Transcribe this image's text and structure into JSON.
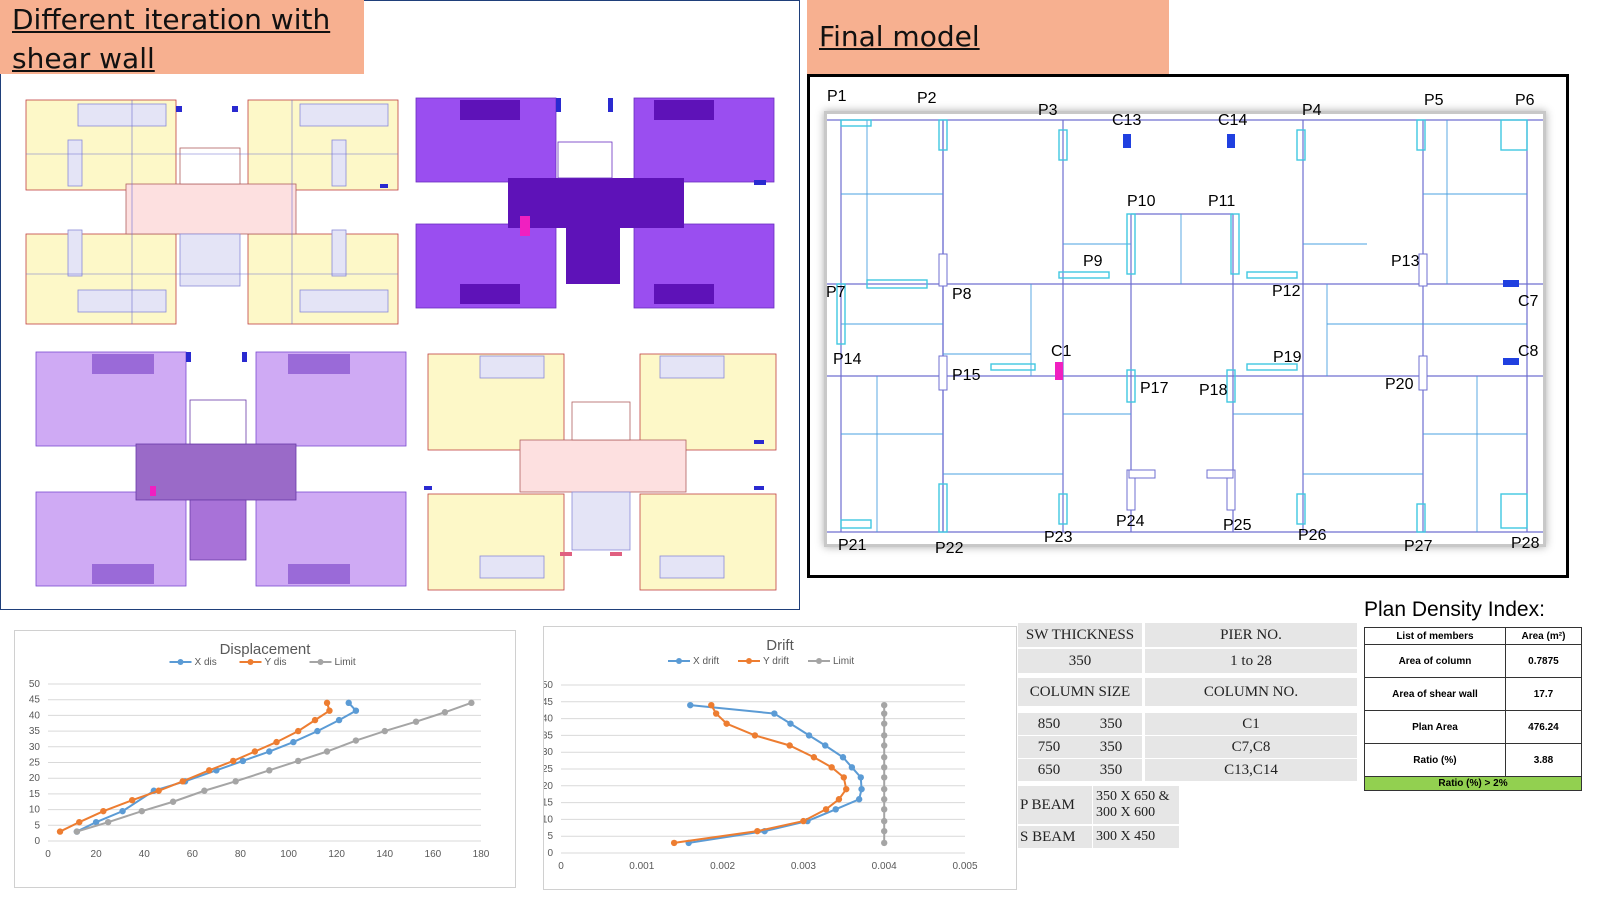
{
  "titles": {
    "left": "Different iteration with shear wall",
    "right": "Final model"
  },
  "final_model": {
    "labels": [
      "P1",
      "P2",
      "P3",
      "C13",
      "C14",
      "P4",
      "P5",
      "P6",
      "P10",
      "P11",
      "P9",
      "P13",
      "P7",
      "P8",
      "P12",
      "C7",
      "C1",
      "C8",
      "P14",
      "P15",
      "P19",
      "P17",
      "P18",
      "P20",
      "P24",
      "P25",
      "P23",
      "P26",
      "P21",
      "P22",
      "P27",
      "P28"
    ]
  },
  "displacement_chart": {
    "title": "Displacement",
    "legend": [
      "X dis",
      "Y dis",
      "Limit"
    ],
    "x_ticks": [
      "0",
      "20",
      "40",
      "60",
      "80",
      "100",
      "120",
      "140",
      "160",
      "180"
    ],
    "y_ticks": [
      "0",
      "5",
      "10",
      "15",
      "20",
      "25",
      "30",
      "35",
      "40",
      "45",
      "50"
    ]
  },
  "drift_chart": {
    "title": "Drift",
    "legend": [
      "X drift",
      "Y drift",
      "Limit"
    ],
    "x_ticks": [
      "0",
      "0.001",
      "0.002",
      "0.003",
      "0.004",
      "0.005"
    ],
    "y_ticks": [
      "0",
      "5",
      "10",
      "15",
      "20",
      "25",
      "30",
      "35",
      "40",
      "45",
      "50"
    ]
  },
  "chart_data": [
    {
      "type": "line",
      "title": "Displacement",
      "xlim": [
        0,
        180
      ],
      "ylim": [
        0,
        50
      ],
      "series": [
        {
          "name": "X dis",
          "color": "#5b9bd5",
          "points": [
            [
              12,
              3
            ],
            [
              20,
              6
            ],
            [
              31,
              9.5
            ],
            [
              44,
              16
            ],
            [
              57,
              19
            ],
            [
              70,
              22.5
            ],
            [
              81,
              25.5
            ],
            [
              92,
              28.5
            ],
            [
              102,
              31.5
            ],
            [
              112,
              35
            ],
            [
              121,
              38.5
            ],
            [
              128,
              41.5
            ],
            [
              125,
              44
            ]
          ]
        },
        {
          "name": "Y dis",
          "color": "#ed7d31",
          "points": [
            [
              5,
              3
            ],
            [
              13,
              6
            ],
            [
              23,
              9.5
            ],
            [
              35,
              13
            ],
            [
              46,
              16
            ],
            [
              56,
              19
            ],
            [
              67,
              22.5
            ],
            [
              77,
              25.5
            ],
            [
              86,
              28.5
            ],
            [
              95,
              31.5
            ],
            [
              104,
              35
            ],
            [
              111,
              38.5
            ],
            [
              117,
              41.5
            ],
            [
              116,
              44
            ]
          ]
        },
        {
          "name": "Limit",
          "color": "#a5a5a5",
          "points": [
            [
              12,
              3
            ],
            [
              25,
              6
            ],
            [
              39,
              9.5
            ],
            [
              52,
              12.5
            ],
            [
              65,
              16
            ],
            [
              78,
              19
            ],
            [
              92,
              22.5
            ],
            [
              104,
              25.5
            ],
            [
              116,
              28.5
            ],
            [
              128,
              32
            ],
            [
              140,
              35
            ],
            [
              153,
              38
            ],
            [
              165,
              41
            ],
            [
              176,
              44
            ]
          ]
        }
      ]
    },
    {
      "type": "line",
      "title": "Drift",
      "xlim": [
        0,
        0.005
      ],
      "ylim": [
        0,
        50
      ],
      "series": [
        {
          "name": "X drift",
          "color": "#5b9bd5",
          "points": [
            [
              0.00158,
              3
            ],
            [
              0.00252,
              6.5
            ],
            [
              0.00305,
              9.5
            ],
            [
              0.0034,
              13
            ],
            [
              0.00369,
              16
            ],
            [
              0.00372,
              19
            ],
            [
              0.00371,
              22.5
            ],
            [
              0.0036,
              25.5
            ],
            [
              0.00349,
              28.5
            ],
            [
              0.00327,
              32
            ],
            [
              0.00307,
              35
            ],
            [
              0.00284,
              38.5
            ],
            [
              0.00264,
              41.5
            ],
            [
              0.0016,
              44
            ]
          ]
        },
        {
          "name": "Y drift",
          "color": "#ed7d31",
          "points": [
            [
              0.0014,
              3
            ],
            [
              0.00243,
              6.5
            ],
            [
              0.003,
              9.5
            ],
            [
              0.00328,
              13
            ],
            [
              0.00344,
              16
            ],
            [
              0.00353,
              19
            ],
            [
              0.0035,
              22.5
            ],
            [
              0.00335,
              25.5
            ],
            [
              0.00313,
              28.5
            ],
            [
              0.00283,
              32
            ],
            [
              0.0024,
              35
            ],
            [
              0.00205,
              38.5
            ],
            [
              0.00192,
              41.5
            ],
            [
              0.00186,
              44
            ]
          ]
        },
        {
          "name": "Limit",
          "color": "#a5a5a5",
          "points": [
            [
              0.004,
              3
            ],
            [
              0.004,
              6.5
            ],
            [
              0.004,
              9.5
            ],
            [
              0.004,
              13
            ],
            [
              0.004,
              16
            ],
            [
              0.004,
              19
            ],
            [
              0.004,
              22.5
            ],
            [
              0.004,
              25.5
            ],
            [
              0.004,
              28.5
            ],
            [
              0.004,
              32
            ],
            [
              0.004,
              35
            ],
            [
              0.004,
              38.5
            ],
            [
              0.004,
              41.5
            ],
            [
              0.004,
              44
            ]
          ]
        }
      ]
    }
  ],
  "sw_table": {
    "sw_thickness_label": "SW THICKNESS",
    "pier_no_label": "PIER NO.",
    "sw_thickness": "350",
    "pier_no": "1 to 28",
    "column_size_label": "COLUMN SIZE",
    "column_no_label": "COLUMN NO.",
    "columns": [
      {
        "a": "850",
        "b": "350",
        "no": "C1"
      },
      {
        "a": "750",
        "b": "350",
        "no": "C7,C8"
      },
      {
        "a": "650",
        "b": "350",
        "no": "C13,C14"
      }
    ],
    "p_beam_label": "P BEAM",
    "p_beam_1": "350 X 650  &",
    "p_beam_2": "300 X 600",
    "s_beam_label": "S BEAM",
    "s_beam": "300 X 450"
  },
  "plan_density": {
    "title": "Plan Density Index:",
    "head": [
      "List of members",
      "Area (m²)"
    ],
    "rows": [
      {
        "label": "Area of column",
        "value": "0.7875"
      },
      {
        "label": "Area of shear wall",
        "value": "17.7"
      },
      {
        "label": "Plan Area",
        "value": "476.24"
      },
      {
        "label": "Ratio (%)",
        "value": "3.88"
      }
    ],
    "footer": "Ratio (%) > 2%"
  }
}
